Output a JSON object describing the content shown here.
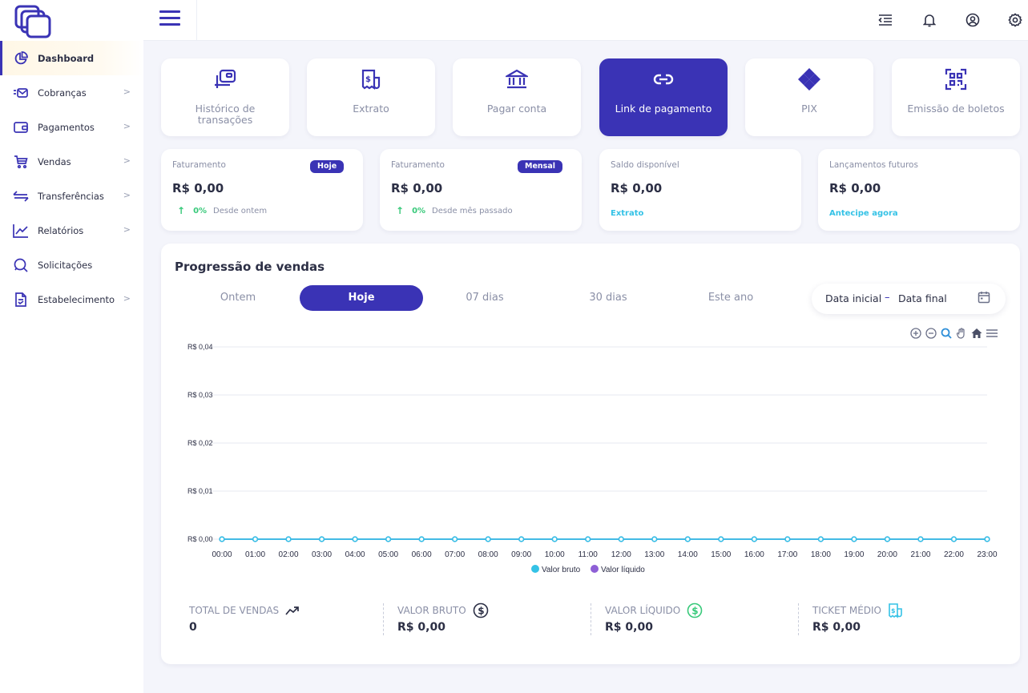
{
  "sidebar": {
    "items": [
      {
        "label": "Dashboard",
        "icon": "pie-chart-icon",
        "active": true
      },
      {
        "label": "Cobranças",
        "icon": "mail-list-icon",
        "chevron": ">"
      },
      {
        "label": "Pagamentos",
        "icon": "wallet-icon",
        "chevron": ">"
      },
      {
        "label": "Vendas",
        "icon": "cart-icon",
        "chevron": ">"
      },
      {
        "label": "Transferências",
        "icon": "transfer-arrows-icon",
        "chevron": ">"
      },
      {
        "label": "Relatórios",
        "icon": "line-chart-icon",
        "chevron": ">"
      },
      {
        "label": "Solicitações",
        "icon": "chat-search-icon"
      },
      {
        "label": "Estabelecimento",
        "icon": "document-check-icon",
        "chevron": ">"
      }
    ]
  },
  "quick_actions": [
    {
      "label": "Histórico de transações",
      "icon": "transaction-history-icon"
    },
    {
      "label": "Extrato",
      "icon": "statement-icon"
    },
    {
      "label": "Pagar conta",
      "icon": "bank-icon"
    },
    {
      "label": "Link de pagamento",
      "icon": "link-icon",
      "active": true
    },
    {
      "label": "PIX",
      "icon": "pix-icon"
    },
    {
      "label": "Emissão de boletos",
      "icon": "qr-code-icon"
    }
  ],
  "stats": [
    {
      "title": "Faturamento",
      "badge": "Hoje",
      "value": "R$ 0,00",
      "arrow": "↑",
      "pct": "0%",
      "since": "Desde ontem"
    },
    {
      "title": "Faturamento",
      "badge": "Mensal",
      "value": "R$ 0,00",
      "arrow": "↑",
      "pct": "0%",
      "since": "Desde mês passado"
    },
    {
      "title": "Saldo disponível",
      "value": "R$ 0,00",
      "link": "Extrato"
    },
    {
      "title": "Lançamentos futuros",
      "value": "R$ 0,00",
      "link": "Antecipe agora"
    }
  ],
  "sales": {
    "title": "Progressão de vendas",
    "tabs": [
      "Ontem",
      "Hoje",
      "07 dias",
      "30 dias",
      "Este ano"
    ],
    "active_tab": "Hoje",
    "date_start_placeholder": "Data inicial",
    "date_separator": "–",
    "date_end_placeholder": "Data final",
    "summary": [
      {
        "label": "TOTAL DE VENDAS",
        "value": "0",
        "icon": "trending-up-icon",
        "icon_color": "#2c2f45"
      },
      {
        "label": "VALOR BRUTO",
        "value": "R$ 0,00",
        "icon": "dollar-circle-icon",
        "icon_color": "#2c2f45"
      },
      {
        "label": "VALOR LÍQUIDO",
        "value": "R$ 0,00",
        "icon": "dollar-circle-icon",
        "icon_color": "#38c97a"
      },
      {
        "label": "TICKET MÉDIO",
        "value": "R$ 0,00",
        "icon": "receipt-icon",
        "icon_color": "#34c2e6"
      }
    ]
  },
  "colors": {
    "primary": "#3a33b5",
    "series_bruto": "#34c2e6",
    "series_liquido": "#8e5fd6",
    "positive": "#38c97a"
  },
  "chart_data": {
    "type": "line",
    "x": [
      "00:00",
      "01:00",
      "02:00",
      "03:00",
      "04:00",
      "05:00",
      "06:00",
      "07:00",
      "08:00",
      "09:00",
      "10:00",
      "11:00",
      "12:00",
      "13:00",
      "14:00",
      "15:00",
      "16:00",
      "17:00",
      "18:00",
      "19:00",
      "20:00",
      "21:00",
      "22:00",
      "23:00"
    ],
    "y_ticks": [
      "R$ 0,00",
      "R$ 0,01",
      "R$ 0,02",
      "R$ 0,03",
      "R$ 0,04"
    ],
    "ylim": [
      0,
      0.04
    ],
    "grid": true,
    "legend_position": "bottom",
    "series": [
      {
        "name": "Valor bruto",
        "color": "#34c2e6",
        "values": [
          0,
          0,
          0,
          0,
          0,
          0,
          0,
          0,
          0,
          0,
          0,
          0,
          0,
          0,
          0,
          0,
          0,
          0,
          0,
          0,
          0,
          0,
          0,
          0
        ]
      },
      {
        "name": "Valor líquido",
        "color": "#8e5fd6",
        "values": [
          0,
          0,
          0,
          0,
          0,
          0,
          0,
          0,
          0,
          0,
          0,
          0,
          0,
          0,
          0,
          0,
          0,
          0,
          0,
          0,
          0,
          0,
          0,
          0
        ]
      }
    ]
  }
}
